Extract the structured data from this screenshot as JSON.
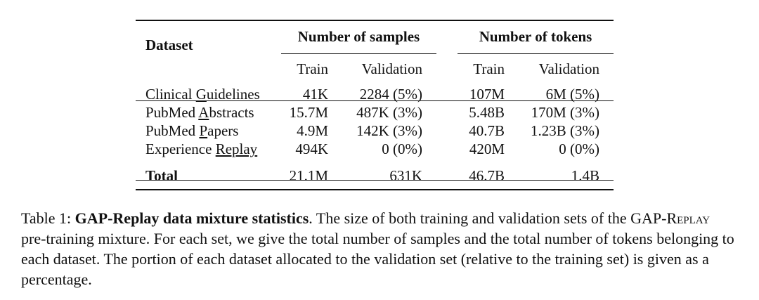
{
  "table": {
    "header": {
      "dataset": "Dataset",
      "samples_group": "Number of samples",
      "tokens_group": "Number of tokens",
      "samples_train": "Train",
      "samples_validation": "Validation",
      "tokens_train": "Train",
      "tokens_validation": "Validation"
    },
    "rows": [
      {
        "pre": "Clinical ",
        "u": "G",
        "post": "uidelines",
        "samples_train": "41K",
        "samples_validation": "2284 (5%)",
        "tokens_train": "107M",
        "tokens_validation": "6M (5%)"
      },
      {
        "pre": "PubMed ",
        "u": "A",
        "post": "bstracts",
        "samples_train": "15.7M",
        "samples_validation": "487K (3%)",
        "tokens_train": "5.48B",
        "tokens_validation": "170M (3%)"
      },
      {
        "pre": "PubMed ",
        "u": "P",
        "post": "apers",
        "samples_train": "4.9M",
        "samples_validation": "142K (3%)",
        "tokens_train": "40.7B",
        "tokens_validation": "1.23B (3%)"
      },
      {
        "pre": "Experience ",
        "u": "Replay",
        "post": "",
        "samples_train": "494K",
        "samples_validation": "0 (0%)",
        "tokens_train": "420M",
        "tokens_validation": "0 (0%)"
      }
    ],
    "total": {
      "label": "Total",
      "samples_train": "21.1M",
      "samples_validation": "631K",
      "tokens_train": "46.7B",
      "tokens_validation": "1.4B"
    }
  },
  "caption": {
    "label": "Table 1: ",
    "title": "GAP-Replay data mixture statistics",
    "text1": ". The size of both training and validation sets of the ",
    "smallcaps": "GAP-Replay",
    "text2": " pre-training mixture. For each set, we give the total number of samples and the total number of tokens belonging to each dataset. The portion of each dataset allocated to the validation set (relative to the training set) is given as a percentage."
  }
}
